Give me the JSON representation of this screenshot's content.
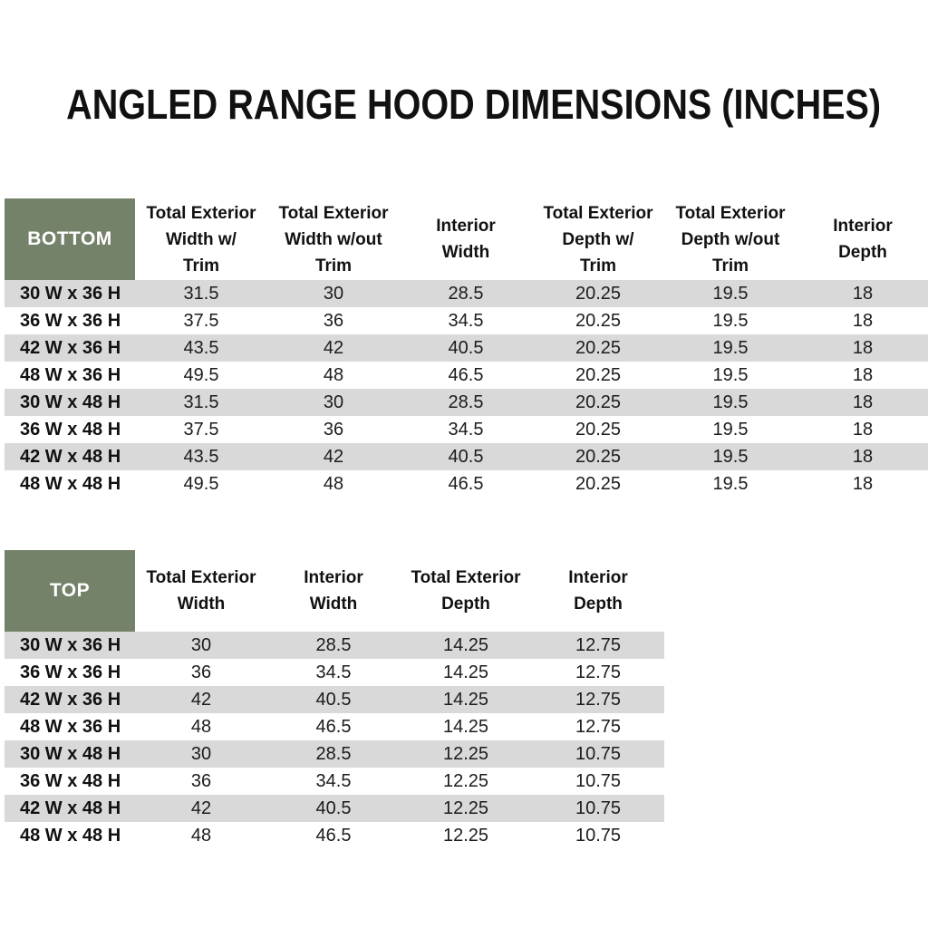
{
  "page": {
    "title": "ANGLED RANGE HOOD DIMENSIONS (INCHES)"
  },
  "colors": {
    "header_green": "#75826A",
    "stripe_gray": "#D9D9D9",
    "header_text": "#FFFFFF",
    "body_text": "#1C1C1C"
  },
  "tables": [
    {
      "id": "bottom",
      "label": "BOTTOM",
      "columns": [
        "Total Exterior\nWidth w/\nTrim",
        "Total Exterior\nWidth w/out\nTrim",
        "Interior\nWidth",
        "Total Exterior\nDepth w/\nTrim",
        "Total Exterior\nDepth w/out\nTrim",
        "Interior\nDepth"
      ],
      "rows": [
        {
          "label": "30 W x 36 H",
          "values": [
            "31.5",
            "30",
            "28.5",
            "20.25",
            "19.5",
            "18"
          ]
        },
        {
          "label": "36 W x 36 H",
          "values": [
            "37.5",
            "36",
            "34.5",
            "20.25",
            "19.5",
            "18"
          ]
        },
        {
          "label": "42 W x 36 H",
          "values": [
            "43.5",
            "42",
            "40.5",
            "20.25",
            "19.5",
            "18"
          ]
        },
        {
          "label": "48 W x 36 H",
          "values": [
            "49.5",
            "48",
            "46.5",
            "20.25",
            "19.5",
            "18"
          ]
        },
        {
          "label": "30 W x 48 H",
          "values": [
            "31.5",
            "30",
            "28.5",
            "20.25",
            "19.5",
            "18"
          ]
        },
        {
          "label": "36 W x 48 H",
          "values": [
            "37.5",
            "36",
            "34.5",
            "20.25",
            "19.5",
            "18"
          ]
        },
        {
          "label": "42 W x 48 H",
          "values": [
            "43.5",
            "42",
            "40.5",
            "20.25",
            "19.5",
            "18"
          ]
        },
        {
          "label": "48 W x 48 H",
          "values": [
            "49.5",
            "48",
            "46.5",
            "20.25",
            "19.5",
            "18"
          ]
        }
      ]
    },
    {
      "id": "top",
      "label": "TOP",
      "columns": [
        "Total Exterior\nWidth",
        "Interior\nWidth",
        "Total Exterior\nDepth",
        "Interior\nDepth"
      ],
      "rows": [
        {
          "label": "30 W x 36 H",
          "values": [
            "30",
            "28.5",
            "14.25",
            "12.75"
          ]
        },
        {
          "label": "36 W x 36 H",
          "values": [
            "36",
            "34.5",
            "14.25",
            "12.75"
          ]
        },
        {
          "label": "42 W x 36 H",
          "values": [
            "42",
            "40.5",
            "14.25",
            "12.75"
          ]
        },
        {
          "label": "48 W x 36 H",
          "values": [
            "48",
            "46.5",
            "14.25",
            "12.75"
          ]
        },
        {
          "label": "30 W x 48 H",
          "values": [
            "30",
            "28.5",
            "12.25",
            "10.75"
          ]
        },
        {
          "label": "36 W x 48 H",
          "values": [
            "36",
            "34.5",
            "12.25",
            "10.75"
          ]
        },
        {
          "label": "42 W x 48 H",
          "values": [
            "42",
            "40.5",
            "12.25",
            "10.75"
          ]
        },
        {
          "label": "48 W x 48 H",
          "values": [
            "48",
            "46.5",
            "12.25",
            "10.75"
          ]
        }
      ]
    }
  ]
}
